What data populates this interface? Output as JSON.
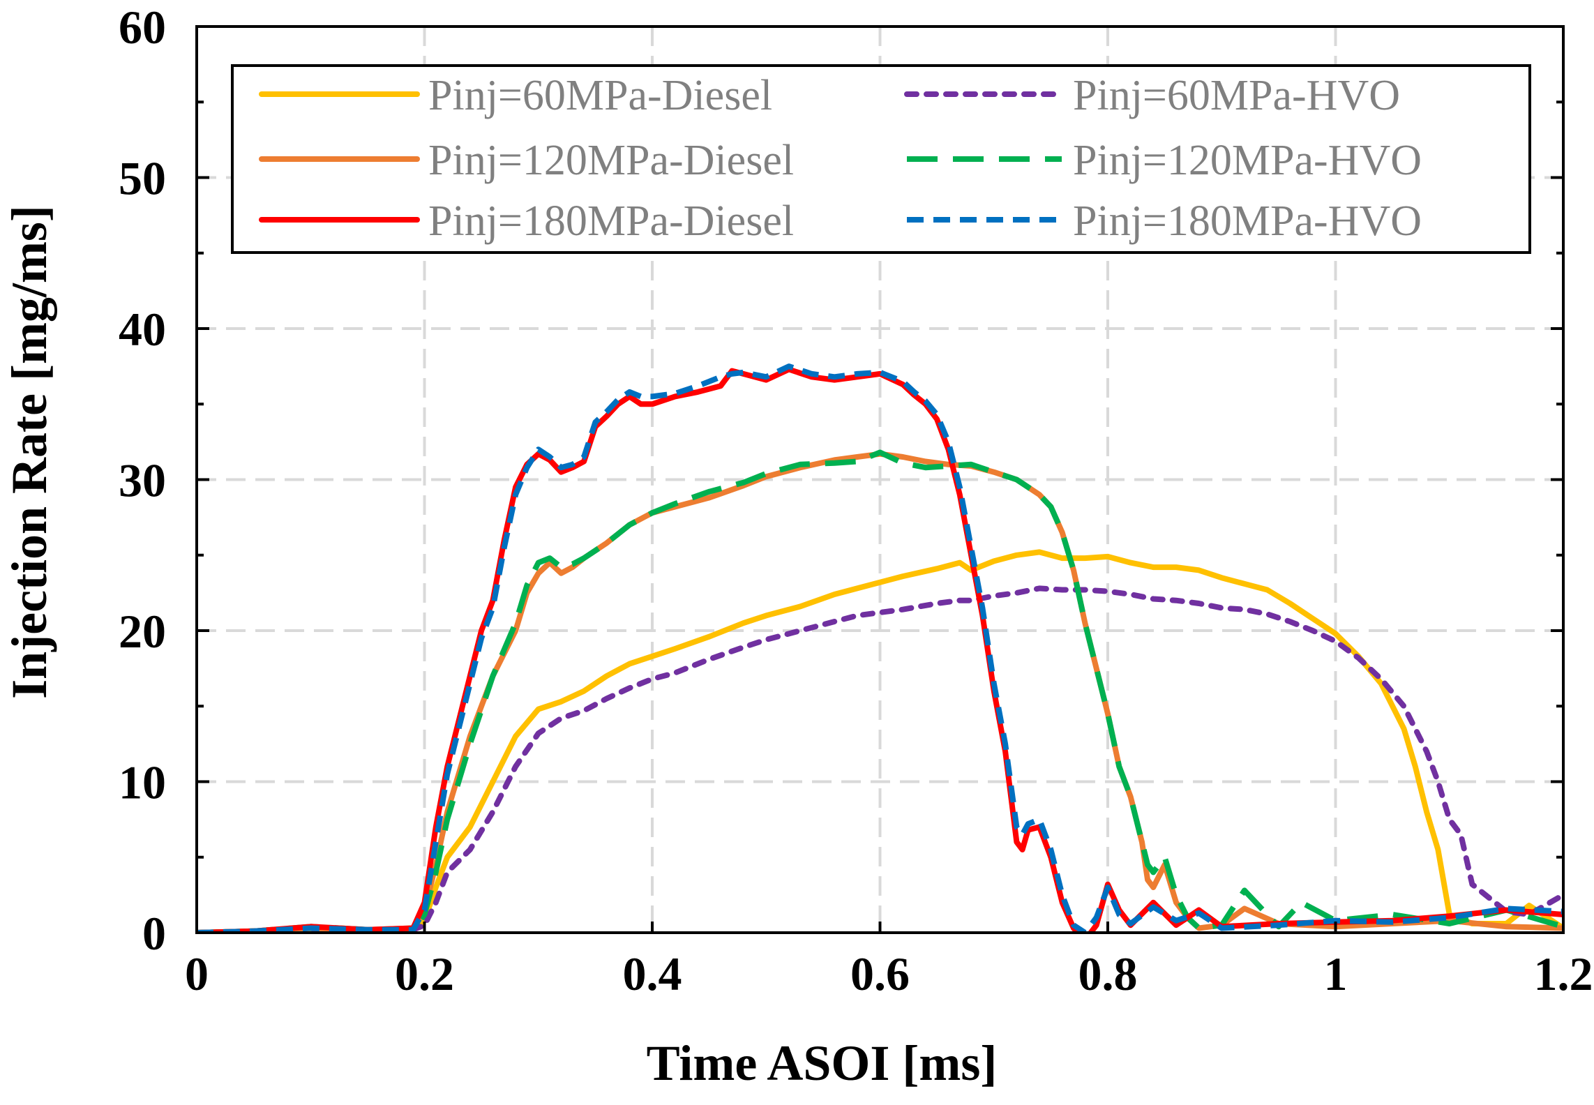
{
  "chart_data": {
    "type": "line",
    "title": "",
    "xlabel": "Time ASOI [ms]",
    "ylabel": "Injection Rate [mg/ms]",
    "xlim": [
      0,
      1.2
    ],
    "ylim": [
      0,
      60
    ],
    "x_ticks": [
      "0",
      "0.2",
      "0.4",
      "0.6",
      "0.8",
      "1",
      "1.2"
    ],
    "y_ticks": [
      "0",
      "10",
      "20",
      "30",
      "40",
      "50",
      "60"
    ],
    "grid": true,
    "legend_position": "top",
    "series": [
      {
        "name": "Pinj=60MPa-Diesel",
        "color": "#FFC000",
        "dash": "solid",
        "x": [
          0,
          0.05,
          0.1,
          0.15,
          0.19,
          0.2,
          0.21,
          0.22,
          0.24,
          0.26,
          0.28,
          0.3,
          0.32,
          0.34,
          0.36,
          0.38,
          0.4,
          0.42,
          0.45,
          0.48,
          0.5,
          0.53,
          0.56,
          0.58,
          0.6,
          0.62,
          0.65,
          0.67,
          0.68,
          0.7,
          0.72,
          0.74,
          0.76,
          0.78,
          0.8,
          0.82,
          0.84,
          0.86,
          0.88,
          0.9,
          0.92,
          0.94,
          0.96,
          0.98,
          1.0,
          1.02,
          1.04,
          1.06,
          1.07,
          1.08,
          1.09,
          1.1,
          1.12,
          1.15,
          1.17,
          1.2
        ],
        "values": [
          0,
          0.1,
          0.2,
          0.1,
          0.3,
          0.8,
          3,
          5,
          7,
          10,
          13,
          14.8,
          15.3,
          16,
          17,
          17.8,
          18.3,
          18.8,
          19.6,
          20.5,
          21,
          21.6,
          22.4,
          22.8,
          23.2,
          23.6,
          24.1,
          24.5,
          24,
          24.6,
          25,
          25.2,
          24.8,
          24.8,
          24.9,
          24.5,
          24.2,
          24.2,
          24,
          23.5,
          23.1,
          22.7,
          21.8,
          20.8,
          19.8,
          18.3,
          16.5,
          13.5,
          11,
          8,
          5.5,
          1.2,
          0.6,
          0.6,
          1.8,
          0.3
        ]
      },
      {
        "name": "Pinj=60MPa-HVO",
        "color": "#7030A0",
        "dash": "dot",
        "x": [
          0,
          0.05,
          0.1,
          0.15,
          0.19,
          0.2,
          0.21,
          0.22,
          0.24,
          0.26,
          0.28,
          0.3,
          0.32,
          0.34,
          0.36,
          0.38,
          0.4,
          0.42,
          0.45,
          0.48,
          0.5,
          0.53,
          0.56,
          0.58,
          0.6,
          0.62,
          0.65,
          0.67,
          0.68,
          0.7,
          0.72,
          0.74,
          0.76,
          0.78,
          0.8,
          0.82,
          0.84,
          0.86,
          0.88,
          0.9,
          0.92,
          0.94,
          0.96,
          0.98,
          1.0,
          1.02,
          1.04,
          1.06,
          1.08,
          1.09,
          1.1,
          1.11,
          1.12,
          1.15,
          1.17,
          1.2
        ],
        "values": [
          0,
          0.1,
          0.2,
          0.1,
          0.2,
          0.5,
          2,
          4,
          5.5,
          8,
          11,
          13.2,
          14.2,
          14.7,
          15.5,
          16.2,
          16.8,
          17.2,
          18.1,
          18.9,
          19.4,
          20,
          20.6,
          21,
          21.2,
          21.4,
          21.8,
          22,
          22,
          22.3,
          22.5,
          22.8,
          22.7,
          22.7,
          22.6,
          22.4,
          22.1,
          22,
          21.8,
          21.5,
          21.4,
          21.1,
          20.6,
          20,
          19.3,
          18.2,
          16.8,
          15,
          12,
          10,
          7.5,
          6.5,
          3.2,
          1.4,
          1.2,
          2.5
        ]
      },
      {
        "name": "Pinj=120MPa-Diesel",
        "color": "#ED7D31",
        "dash": "solid",
        "x": [
          0,
          0.05,
          0.1,
          0.15,
          0.19,
          0.2,
          0.21,
          0.22,
          0.24,
          0.26,
          0.28,
          0.29,
          0.3,
          0.31,
          0.32,
          0.33,
          0.34,
          0.36,
          0.38,
          0.4,
          0.42,
          0.45,
          0.48,
          0.5,
          0.53,
          0.56,
          0.58,
          0.6,
          0.62,
          0.64,
          0.66,
          0.68,
          0.7,
          0.72,
          0.74,
          0.75,
          0.76,
          0.77,
          0.78,
          0.79,
          0.8,
          0.81,
          0.82,
          0.83,
          0.835,
          0.84,
          0.85,
          0.86,
          0.87,
          0.88,
          0.9,
          0.92,
          0.95,
          1.0,
          1.05,
          1.1,
          1.15,
          1.2
        ],
        "values": [
          0,
          0.1,
          0.3,
          0.2,
          0.3,
          1.5,
          4.5,
          8,
          13,
          17,
          20,
          22.5,
          23.8,
          24.5,
          23.8,
          24.2,
          24.8,
          25.8,
          27,
          27.8,
          28.2,
          28.8,
          29.6,
          30.2,
          30.8,
          31.3,
          31.5,
          31.7,
          31.5,
          31.2,
          31,
          30.9,
          30.5,
          30,
          29,
          28.2,
          26.5,
          24,
          20.5,
          17.5,
          14.5,
          11,
          9,
          6,
          3.5,
          3,
          4.5,
          2,
          1,
          0.3,
          0.5,
          1.6,
          0.6,
          0.4,
          0.6,
          0.8,
          0.4,
          0.3
        ]
      },
      {
        "name": "Pinj=120MPa-HVO",
        "color": "#00B050",
        "dash": "longdash",
        "x": [
          0,
          0.05,
          0.1,
          0.15,
          0.19,
          0.2,
          0.21,
          0.22,
          0.24,
          0.26,
          0.28,
          0.29,
          0.3,
          0.31,
          0.32,
          0.33,
          0.34,
          0.36,
          0.38,
          0.4,
          0.42,
          0.45,
          0.48,
          0.5,
          0.53,
          0.56,
          0.58,
          0.6,
          0.62,
          0.64,
          0.66,
          0.68,
          0.7,
          0.72,
          0.74,
          0.75,
          0.76,
          0.77,
          0.78,
          0.79,
          0.8,
          0.81,
          0.82,
          0.83,
          0.835,
          0.84,
          0.85,
          0.86,
          0.87,
          0.88,
          0.9,
          0.92,
          0.95,
          0.97,
          1.0,
          1.05,
          1.1,
          1.15,
          1.2
        ],
        "values": [
          0,
          0.1,
          0.4,
          0.2,
          0.2,
          1.2,
          4,
          7.5,
          12.5,
          17,
          20.5,
          23,
          24.5,
          24.8,
          24.2,
          24.4,
          24.8,
          25.8,
          27,
          27.8,
          28.4,
          29.2,
          29.8,
          30.4,
          31,
          31.1,
          31.2,
          31.8,
          31.1,
          30.8,
          30.9,
          31,
          30.5,
          30,
          29,
          28.2,
          26.5,
          24,
          20.5,
          17.5,
          14.5,
          11,
          9,
          6,
          4.5,
          4,
          5,
          2.5,
          1,
          0.3,
          0.5,
          2.8,
          0.4,
          2,
          0.8,
          1.2,
          0.6,
          1.5,
          0.4
        ]
      },
      {
        "name": "Pinj=180MPa-Diesel",
        "color": "#FF0000",
        "dash": "solid",
        "x": [
          0,
          0.05,
          0.1,
          0.15,
          0.19,
          0.2,
          0.21,
          0.22,
          0.24,
          0.25,
          0.26,
          0.27,
          0.28,
          0.29,
          0.3,
          0.31,
          0.32,
          0.33,
          0.34,
          0.35,
          0.36,
          0.37,
          0.38,
          0.39,
          0.4,
          0.42,
          0.44,
          0.46,
          0.47,
          0.48,
          0.5,
          0.52,
          0.54,
          0.56,
          0.58,
          0.6,
          0.62,
          0.63,
          0.64,
          0.65,
          0.66,
          0.67,
          0.68,
          0.69,
          0.7,
          0.71,
          0.72,
          0.725,
          0.73,
          0.74,
          0.75,
          0.76,
          0.77,
          0.78,
          0.79,
          0.8,
          0.81,
          0.82,
          0.84,
          0.86,
          0.88,
          0.9,
          0.95,
          1.0,
          1.05,
          1.1,
          1.15,
          1.2
        ],
        "values": [
          0,
          0.1,
          0.4,
          0.2,
          0.3,
          2,
          7,
          11,
          17,
          20,
          22,
          26,
          29.5,
          31,
          31.7,
          31.3,
          30.5,
          30.8,
          31.2,
          33.5,
          34.2,
          35,
          35.5,
          35,
          35,
          35.5,
          35.8,
          36.2,
          37.2,
          37,
          36.6,
          37.3,
          36.8,
          36.6,
          36.8,
          37,
          36.3,
          35.6,
          35,
          34,
          32,
          29,
          25,
          21,
          16,
          12,
          6,
          5.5,
          6.8,
          7,
          5,
          2,
          0.3,
          -0.5,
          0.5,
          3.2,
          1.5,
          0.5,
          2,
          0.5,
          1.5,
          0.4,
          0.6,
          0.7,
          0.8,
          1.1,
          1.5,
          1.2
        ]
      },
      {
        "name": "Pinj=180MPa-HVO",
        "color": "#0070C0",
        "dash": "dash",
        "x": [
          0,
          0.05,
          0.1,
          0.15,
          0.19,
          0.2,
          0.21,
          0.22,
          0.24,
          0.25,
          0.26,
          0.27,
          0.28,
          0.29,
          0.3,
          0.31,
          0.32,
          0.33,
          0.34,
          0.35,
          0.36,
          0.37,
          0.38,
          0.39,
          0.4,
          0.42,
          0.44,
          0.46,
          0.47,
          0.48,
          0.5,
          0.52,
          0.54,
          0.56,
          0.58,
          0.6,
          0.62,
          0.63,
          0.64,
          0.65,
          0.66,
          0.67,
          0.68,
          0.69,
          0.7,
          0.71,
          0.72,
          0.725,
          0.73,
          0.74,
          0.75,
          0.76,
          0.77,
          0.78,
          0.79,
          0.8,
          0.81,
          0.82,
          0.84,
          0.86,
          0.88,
          0.9,
          0.95,
          1.0,
          1.05,
          1.1,
          1.15,
          1.2
        ],
        "values": [
          0,
          0.1,
          0.3,
          0.2,
          0.2,
          1.5,
          6,
          10.5,
          16.5,
          19.5,
          21.5,
          25.5,
          29,
          30.8,
          32,
          31.5,
          30.8,
          31,
          31.5,
          33.8,
          34.5,
          35.3,
          35.8,
          35.5,
          35.5,
          35.7,
          36.2,
          36.8,
          37,
          37.1,
          36.8,
          37.5,
          37,
          36.8,
          37,
          37.1,
          36.5,
          35.8,
          35.2,
          34.3,
          32.5,
          29.5,
          25.5,
          21.5,
          16.5,
          12.5,
          7,
          6.5,
          7.2,
          7.5,
          5.5,
          2.5,
          0.5,
          0,
          1,
          3,
          1.2,
          0.6,
          1.7,
          0.8,
          1.3,
          0.3,
          0.5,
          0.8,
          0.7,
          1,
          1.6,
          1.4
        ]
      }
    ]
  }
}
